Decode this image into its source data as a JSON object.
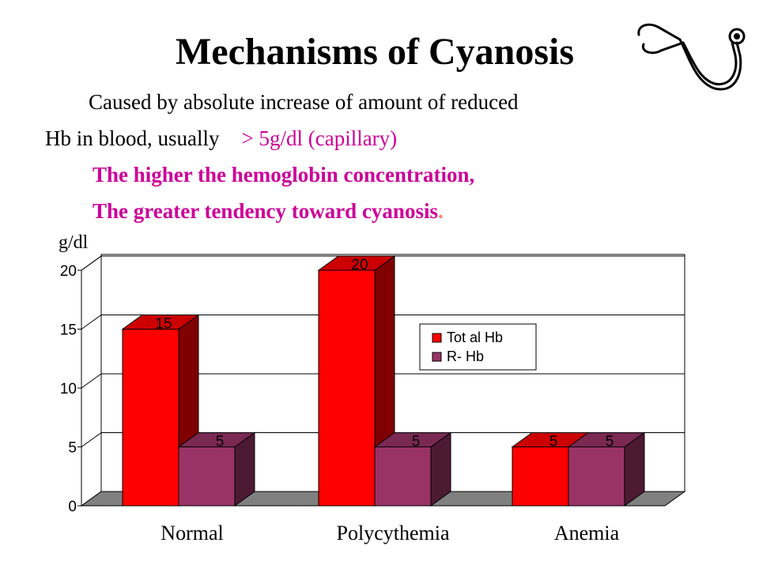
{
  "slide": {
    "title": "Mechanisms of Cyanosis",
    "line1": "Caused by absolute increase of amount of reduced",
    "line2_a": "Hb in blood, usually",
    "line2_b": "> 5g/dl (capillary)",
    "line3": "The higher the hemoglobin concentration,",
    "line4": "The greater tendency toward cyanosis",
    "line4_end": ".",
    "unit_label": "g/dl",
    "stethoscope_icon": "stethoscope-icon"
  },
  "chart_data": {
    "type": "bar",
    "categories": [
      "Normal",
      "Polycythemia",
      "Anemia"
    ],
    "series": [
      {
        "name": "Tot al  Hb",
        "values": [
          15,
          20,
          5
        ],
        "color": "#ff0000",
        "side_color": "#800000",
        "top_color": "#cc0000"
      },
      {
        "name": "R- Hb",
        "values": [
          5,
          5,
          5
        ],
        "color": "#993366",
        "side_color": "#4d1a33",
        "top_color": "#7a2952"
      }
    ],
    "ylabel": "g/dl",
    "yticks": [
      0,
      5,
      10,
      15,
      20
    ],
    "ylim": [
      0,
      20
    ],
    "grid": true,
    "legend": "right-center"
  }
}
